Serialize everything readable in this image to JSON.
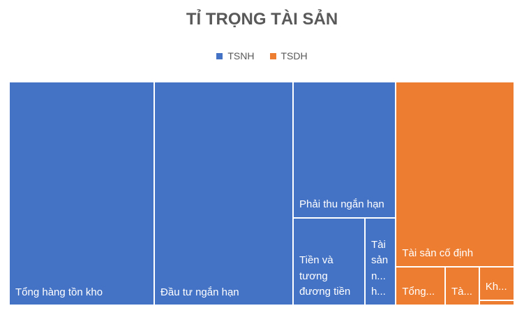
{
  "chart_data": {
    "type": "treemap",
    "title": "TỈ TRỌNG TÀI SẢN",
    "series": [
      {
        "name": "TSNH",
        "color": "#4472c4",
        "categories": [
          "Tổng hàng tồn kho",
          "Đầu tư ngắn hạn",
          "Phải thu ngắn hạn",
          "Tiền và tương đương tiền",
          "Tài sản n... h..."
        ],
        "values": [
          66240,
          63360,
          28518,
          12852,
          5544
        ]
      },
      {
        "name": "TSDH",
        "color": "#ed7d31",
        "categories": [
          "Tài sản cố định",
          "Tổng...",
          "Tà...",
          "Kh...",
          null
        ],
        "values": [
          44710,
          3876,
          2679,
          2385,
          371
        ]
      }
    ]
  }
}
